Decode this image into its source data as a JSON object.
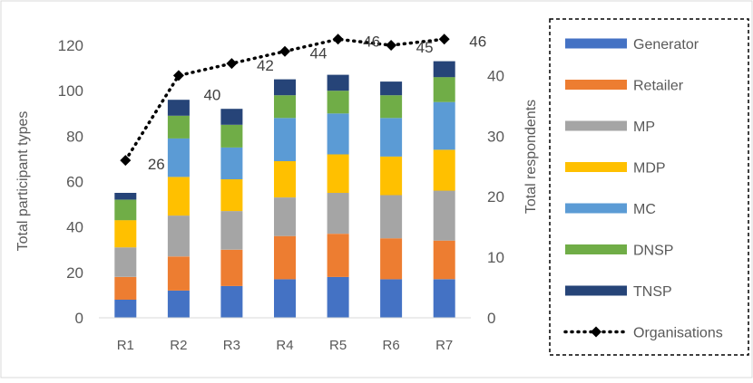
{
  "chart_data": {
    "type": "bar",
    "stacked": true,
    "categories": [
      "R1",
      "R2",
      "R3",
      "R4",
      "R5",
      "R6",
      "R7"
    ],
    "ylabel": "Total participant types",
    "y2label": "Total respondents",
    "ylim": [
      0,
      120
    ],
    "yticks": [
      0,
      20,
      40,
      60,
      80,
      100,
      120
    ],
    "y2lim": [
      0,
      45
    ],
    "y2ticks": [
      0,
      10,
      20,
      30,
      40
    ],
    "grid": false,
    "legend_position": "right",
    "series": [
      {
        "name": "Generator",
        "color": "#4472C4",
        "values": [
          8,
          12,
          14,
          17,
          18,
          17,
          17
        ]
      },
      {
        "name": "Retailer",
        "color": "#ED7D31",
        "values": [
          10,
          15,
          16,
          19,
          19,
          18,
          17
        ]
      },
      {
        "name": "MP",
        "color": "#A5A5A5",
        "values": [
          13,
          18,
          17,
          17,
          18,
          19,
          22
        ]
      },
      {
        "name": "MDP",
        "color": "#FFC000",
        "values": [
          12,
          17,
          14,
          16,
          17,
          17,
          18
        ]
      },
      {
        "name": "MC",
        "color": "#5B9BD5",
        "values": [
          0,
          17,
          14,
          19,
          18,
          17,
          21
        ]
      },
      {
        "name": "DNSP",
        "color": "#70AD47",
        "values": [
          9,
          10,
          10,
          10,
          10,
          10,
          11
        ]
      },
      {
        "name": "TNSP",
        "color": "#264478",
        "values": [
          3,
          7,
          7,
          7,
          7,
          6,
          7
        ]
      }
    ],
    "line_series": {
      "name": "Organisations",
      "axis": "secondary",
      "color": "#000000",
      "values": [
        26,
        40,
        42,
        44,
        46,
        45,
        46
      ],
      "labels": [
        "26",
        "40",
        "42",
        "44",
        "46",
        "45",
        "46"
      ]
    }
  }
}
